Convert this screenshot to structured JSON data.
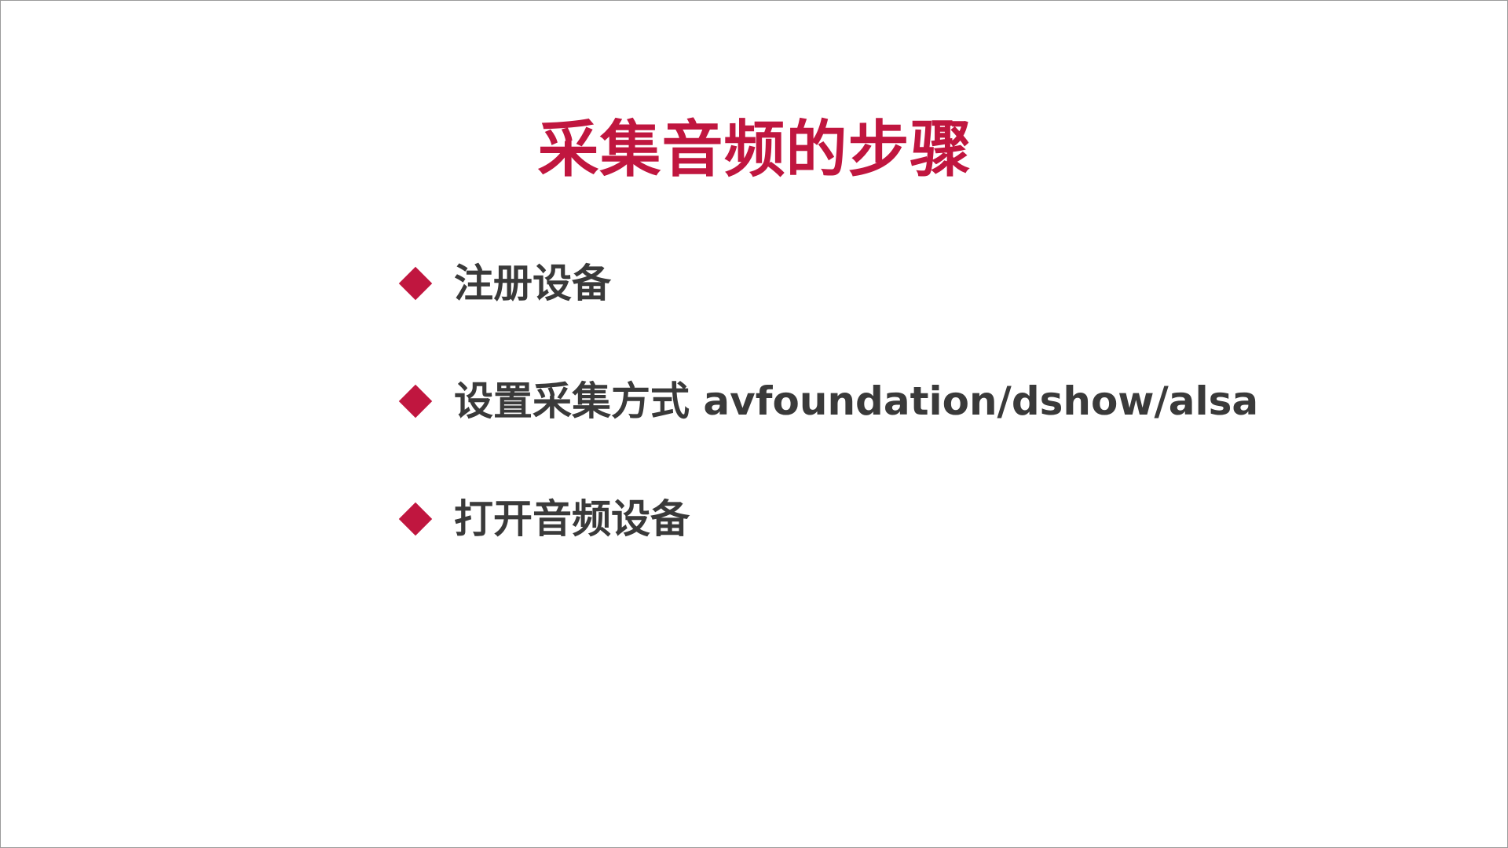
{
  "colors": {
    "accent": "#c0163f",
    "text": "#3a3a3a",
    "background": "#ffffff"
  },
  "slide": {
    "title": "采集音频的步骤",
    "bullets": [
      {
        "icon": "diamond-bullet-icon",
        "text": "注册设备"
      },
      {
        "icon": "diamond-bullet-icon",
        "text": "设置采集方式 avfoundation/dshow/alsa"
      },
      {
        "icon": "diamond-bullet-icon",
        "text": "打开音频设备"
      }
    ]
  }
}
